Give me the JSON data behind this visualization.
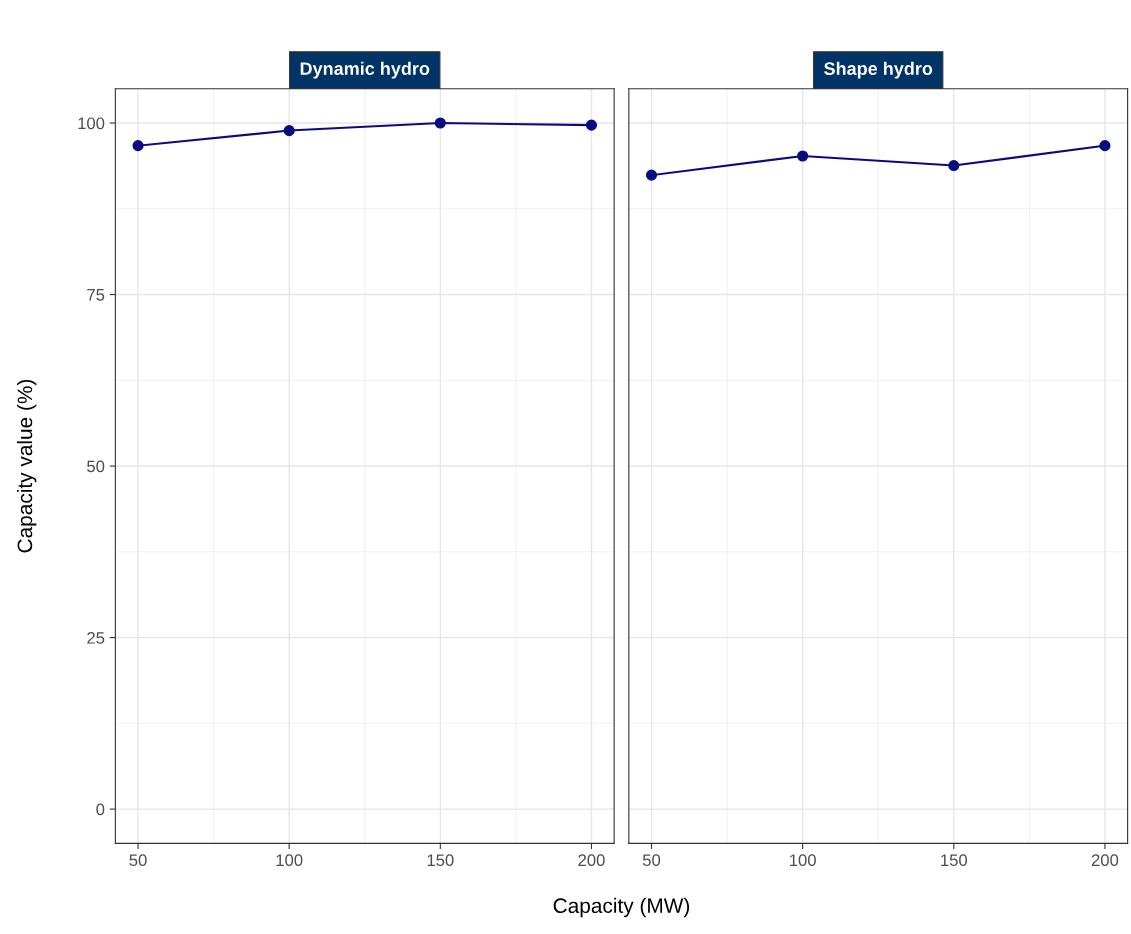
{
  "chart_data": [
    {
      "type": "line",
      "title": "Dynamic hydro",
      "xlabel": "Capacity (MW)",
      "ylabel": "Capacity value (%)",
      "x": [
        50,
        100,
        150,
        200
      ],
      "series": [
        {
          "color": "#0b0b80",
          "values": [
            96.7,
            98.9,
            100,
            99.7
          ]
        }
      ],
      "xlim": [
        42.5,
        207.5
      ],
      "ylim": [
        -5,
        105
      ],
      "xticks": [
        50,
        100,
        150,
        200
      ],
      "yticks": [
        0,
        25,
        50,
        75,
        100
      ],
      "grid": true,
      "marker": "circle",
      "line_style": "solid"
    },
    {
      "type": "line",
      "title": "Shape hydro",
      "x": [
        50,
        100,
        150,
        200
      ],
      "series": [
        {
          "color": "#0b0b80",
          "values": [
            92.4,
            95.2,
            93.8,
            96.7
          ]
        }
      ],
      "xlim": [
        42.5,
        207.5
      ],
      "ylim": [
        -5,
        105
      ],
      "xticks": [
        50,
        100,
        150,
        200
      ],
      "yticks": [
        0,
        25,
        50,
        75,
        100
      ],
      "grid": true,
      "marker": "circle",
      "line_style": "solid",
      "tick_labels": "x"
    }
  ]
}
